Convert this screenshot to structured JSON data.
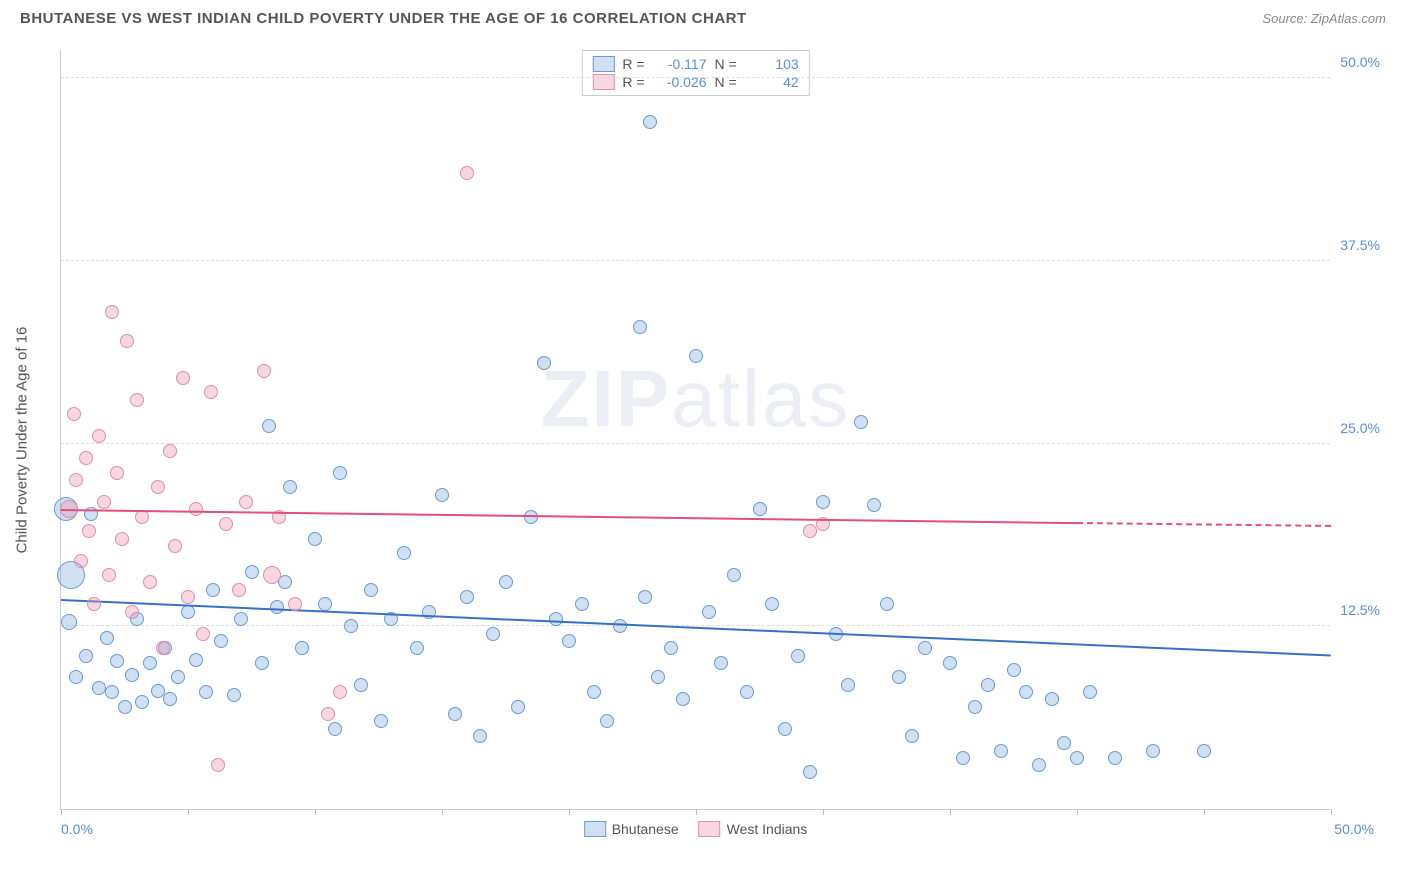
{
  "header": {
    "title": "BHUTANESE VS WEST INDIAN CHILD POVERTY UNDER THE AGE OF 16 CORRELATION CHART",
    "source_prefix": "Source: ",
    "source_name": "ZipAtlas.com"
  },
  "axes": {
    "ylabel": "Child Poverty Under the Age of 16",
    "xlim": [
      0,
      50
    ],
    "ylim": [
      0,
      52
    ],
    "x_tick_positions": [
      0,
      5,
      10,
      15,
      20,
      25,
      30,
      35,
      40,
      45,
      50
    ],
    "x_min_label": "0.0%",
    "x_max_label": "50.0%",
    "y_gridlines": [
      {
        "value": 12.5,
        "label": "12.5%"
      },
      {
        "value": 25.0,
        "label": "25.0%"
      },
      {
        "value": 37.5,
        "label": "37.5%"
      },
      {
        "value": 50.0,
        "label": "50.0%"
      }
    ],
    "grid_color": "#dddddd",
    "axis_color": "#cccccc",
    "tick_label_color": "#5B8FD6"
  },
  "watermark": {
    "zip": "ZIP",
    "atlas": "atlas"
  },
  "series": [
    {
      "name": "Bhutanese",
      "fill": "rgba(120,165,220,0.35)",
      "stroke": "#6C9BD2",
      "line_color": "#3672C4",
      "stats": {
        "R": "-0.117",
        "N": "103"
      },
      "trend": {
        "x1": 0,
        "y1": 14.2,
        "x2": 50,
        "y2": 10.4,
        "dash_start_x": 50
      },
      "points": [
        {
          "x": 0.2,
          "y": 20.5,
          "r": 12
        },
        {
          "x": 0.4,
          "y": 16.0,
          "r": 14
        },
        {
          "x": 0.3,
          "y": 12.8,
          "r": 8
        },
        {
          "x": 0.6,
          "y": 9.0,
          "r": 7
        },
        {
          "x": 1.0,
          "y": 10.5,
          "r": 7
        },
        {
          "x": 1.2,
          "y": 20.2,
          "r": 7
        },
        {
          "x": 1.5,
          "y": 8.3,
          "r": 7
        },
        {
          "x": 1.8,
          "y": 11.7,
          "r": 7
        },
        {
          "x": 2.0,
          "y": 8.0,
          "r": 7
        },
        {
          "x": 2.2,
          "y": 10.1,
          "r": 7
        },
        {
          "x": 2.5,
          "y": 7.0,
          "r": 7
        },
        {
          "x": 2.8,
          "y": 9.2,
          "r": 7
        },
        {
          "x": 3.0,
          "y": 13.0,
          "r": 7
        },
        {
          "x": 3.2,
          "y": 7.3,
          "r": 7
        },
        {
          "x": 3.5,
          "y": 10.0,
          "r": 7
        },
        {
          "x": 3.8,
          "y": 8.1,
          "r": 7
        },
        {
          "x": 4.1,
          "y": 11.0,
          "r": 7
        },
        {
          "x": 4.3,
          "y": 7.5,
          "r": 7
        },
        {
          "x": 4.6,
          "y": 9.0,
          "r": 7
        },
        {
          "x": 5.0,
          "y": 13.5,
          "r": 7
        },
        {
          "x": 5.3,
          "y": 10.2,
          "r": 7
        },
        {
          "x": 5.7,
          "y": 8.0,
          "r": 7
        },
        {
          "x": 6.0,
          "y": 15.0,
          "r": 7
        },
        {
          "x": 6.3,
          "y": 11.5,
          "r": 7
        },
        {
          "x": 6.8,
          "y": 7.8,
          "r": 7
        },
        {
          "x": 7.1,
          "y": 13.0,
          "r": 7
        },
        {
          "x": 7.5,
          "y": 16.2,
          "r": 7
        },
        {
          "x": 7.9,
          "y": 10.0,
          "r": 7
        },
        {
          "x": 8.2,
          "y": 26.2,
          "r": 7
        },
        {
          "x": 8.5,
          "y": 13.8,
          "r": 7
        },
        {
          "x": 8.8,
          "y": 15.5,
          "r": 7
        },
        {
          "x": 9.0,
          "y": 22.0,
          "r": 7
        },
        {
          "x": 9.5,
          "y": 11.0,
          "r": 7
        },
        {
          "x": 10.0,
          "y": 18.5,
          "r": 7
        },
        {
          "x": 10.4,
          "y": 14.0,
          "r": 7
        },
        {
          "x": 10.8,
          "y": 5.5,
          "r": 7
        },
        {
          "x": 11.0,
          "y": 23.0,
          "r": 7
        },
        {
          "x": 11.4,
          "y": 12.5,
          "r": 7
        },
        {
          "x": 11.8,
          "y": 8.5,
          "r": 7
        },
        {
          "x": 12.2,
          "y": 15.0,
          "r": 7
        },
        {
          "x": 12.6,
          "y": 6.0,
          "r": 7
        },
        {
          "x": 13.0,
          "y": 13.0,
          "r": 7
        },
        {
          "x": 13.5,
          "y": 17.5,
          "r": 7
        },
        {
          "x": 14.0,
          "y": 11.0,
          "r": 7
        },
        {
          "x": 14.5,
          "y": 13.5,
          "r": 7
        },
        {
          "x": 15.0,
          "y": 21.5,
          "r": 7
        },
        {
          "x": 15.5,
          "y": 6.5,
          "r": 7
        },
        {
          "x": 16.0,
          "y": 14.5,
          "r": 7
        },
        {
          "x": 16.5,
          "y": 5.0,
          "r": 7
        },
        {
          "x": 17.0,
          "y": 12.0,
          "r": 7
        },
        {
          "x": 17.5,
          "y": 15.5,
          "r": 7
        },
        {
          "x": 18.0,
          "y": 7.0,
          "r": 7
        },
        {
          "x": 18.5,
          "y": 20.0,
          "r": 7
        },
        {
          "x": 19.0,
          "y": 30.5,
          "r": 7
        },
        {
          "x": 19.5,
          "y": 13.0,
          "r": 7
        },
        {
          "x": 20.0,
          "y": 11.5,
          "r": 7
        },
        {
          "x": 20.5,
          "y": 14.0,
          "r": 7
        },
        {
          "x": 21.0,
          "y": 8.0,
          "r": 7
        },
        {
          "x": 21.5,
          "y": 6.0,
          "r": 7
        },
        {
          "x": 22.0,
          "y": 12.5,
          "r": 7
        },
        {
          "x": 22.8,
          "y": 33.0,
          "r": 7
        },
        {
          "x": 23.0,
          "y": 14.5,
          "r": 7
        },
        {
          "x": 23.2,
          "y": 47.0,
          "r": 7
        },
        {
          "x": 23.5,
          "y": 9.0,
          "r": 7
        },
        {
          "x": 24.0,
          "y": 11.0,
          "r": 7
        },
        {
          "x": 24.5,
          "y": 7.5,
          "r": 7
        },
        {
          "x": 25.0,
          "y": 31.0,
          "r": 7
        },
        {
          "x": 25.5,
          "y": 13.5,
          "r": 7
        },
        {
          "x": 26.0,
          "y": 10.0,
          "r": 7
        },
        {
          "x": 26.5,
          "y": 16.0,
          "r": 7
        },
        {
          "x": 27.0,
          "y": 8.0,
          "r": 7
        },
        {
          "x": 27.5,
          "y": 20.5,
          "r": 7
        },
        {
          "x": 28.0,
          "y": 14.0,
          "r": 7
        },
        {
          "x": 28.5,
          "y": 5.5,
          "r": 7
        },
        {
          "x": 29.0,
          "y": 10.5,
          "r": 7
        },
        {
          "x": 29.5,
          "y": 2.5,
          "r": 7
        },
        {
          "x": 30.0,
          "y": 21.0,
          "r": 7
        },
        {
          "x": 30.5,
          "y": 12.0,
          "r": 7
        },
        {
          "x": 31.0,
          "y": 8.5,
          "r": 7
        },
        {
          "x": 31.5,
          "y": 26.5,
          "r": 7
        },
        {
          "x": 32.0,
          "y": 20.8,
          "r": 7
        },
        {
          "x": 32.5,
          "y": 14.0,
          "r": 7
        },
        {
          "x": 33.0,
          "y": 9.0,
          "r": 7
        },
        {
          "x": 33.5,
          "y": 5.0,
          "r": 7
        },
        {
          "x": 34.0,
          "y": 11.0,
          "r": 7
        },
        {
          "x": 35.0,
          "y": 10.0,
          "r": 7
        },
        {
          "x": 35.5,
          "y": 3.5,
          "r": 7
        },
        {
          "x": 36.0,
          "y": 7.0,
          "r": 7
        },
        {
          "x": 36.5,
          "y": 8.5,
          "r": 7
        },
        {
          "x": 37.0,
          "y": 4.0,
          "r": 7
        },
        {
          "x": 37.5,
          "y": 9.5,
          "r": 7
        },
        {
          "x": 38.0,
          "y": 8.0,
          "r": 7
        },
        {
          "x": 38.5,
          "y": 3.0,
          "r": 7
        },
        {
          "x": 39.0,
          "y": 7.5,
          "r": 7
        },
        {
          "x": 39.5,
          "y": 4.5,
          "r": 7
        },
        {
          "x": 40.0,
          "y": 3.5,
          "r": 7
        },
        {
          "x": 40.5,
          "y": 8.0,
          "r": 7
        },
        {
          "x": 41.5,
          "y": 3.5,
          "r": 7
        },
        {
          "x": 43.0,
          "y": 4.0,
          "r": 7
        },
        {
          "x": 45.0,
          "y": 4.0,
          "r": 7
        }
      ]
    },
    {
      "name": "West Indians",
      "fill": "rgba(235,140,170,0.35)",
      "stroke": "#E090AC",
      "line_color": "#E04F7E",
      "stats": {
        "R": "-0.026",
        "N": "42"
      },
      "trend": {
        "x1": 0,
        "y1": 20.4,
        "x2": 40,
        "y2": 19.5,
        "dash_start_x": 40,
        "dash_end_x": 50,
        "dash_end_y": 19.3
      },
      "points": [
        {
          "x": 0.3,
          "y": 20.5,
          "r": 9
        },
        {
          "x": 0.5,
          "y": 27.0,
          "r": 7
        },
        {
          "x": 0.6,
          "y": 22.5,
          "r": 7
        },
        {
          "x": 0.8,
          "y": 17.0,
          "r": 7
        },
        {
          "x": 1.0,
          "y": 24.0,
          "r": 7
        },
        {
          "x": 1.1,
          "y": 19.0,
          "r": 7
        },
        {
          "x": 1.3,
          "y": 14.0,
          "r": 7
        },
        {
          "x": 1.5,
          "y": 25.5,
          "r": 7
        },
        {
          "x": 1.7,
          "y": 21.0,
          "r": 7
        },
        {
          "x": 1.9,
          "y": 16.0,
          "r": 7
        },
        {
          "x": 2.0,
          "y": 34.0,
          "r": 7
        },
        {
          "x": 2.2,
          "y": 23.0,
          "r": 7
        },
        {
          "x": 2.4,
          "y": 18.5,
          "r": 7
        },
        {
          "x": 2.6,
          "y": 32.0,
          "r": 7
        },
        {
          "x": 2.8,
          "y": 13.5,
          "r": 7
        },
        {
          "x": 3.0,
          "y": 28.0,
          "r": 7
        },
        {
          "x": 3.2,
          "y": 20.0,
          "r": 7
        },
        {
          "x": 3.5,
          "y": 15.5,
          "r": 7
        },
        {
          "x": 3.8,
          "y": 22.0,
          "r": 7
        },
        {
          "x": 4.0,
          "y": 11.0,
          "r": 7
        },
        {
          "x": 4.3,
          "y": 24.5,
          "r": 7
        },
        {
          "x": 4.5,
          "y": 18.0,
          "r": 7
        },
        {
          "x": 4.8,
          "y": 29.5,
          "r": 7
        },
        {
          "x": 5.0,
          "y": 14.5,
          "r": 7
        },
        {
          "x": 5.3,
          "y": 20.5,
          "r": 7
        },
        {
          "x": 5.6,
          "y": 12.0,
          "r": 7
        },
        {
          "x": 5.9,
          "y": 28.5,
          "r": 7
        },
        {
          "x": 6.2,
          "y": 3.0,
          "r": 7
        },
        {
          "x": 6.5,
          "y": 19.5,
          "r": 7
        },
        {
          "x": 7.0,
          "y": 15.0,
          "r": 7
        },
        {
          "x": 7.3,
          "y": 21.0,
          "r": 7
        },
        {
          "x": 8.0,
          "y": 30.0,
          "r": 7
        },
        {
          "x": 8.3,
          "y": 16.0,
          "r": 9
        },
        {
          "x": 8.6,
          "y": 20.0,
          "r": 7
        },
        {
          "x": 9.2,
          "y": 14.0,
          "r": 7
        },
        {
          "x": 10.5,
          "y": 6.5,
          "r": 7
        },
        {
          "x": 11.0,
          "y": 8.0,
          "r": 7
        },
        {
          "x": 16.0,
          "y": 43.5,
          "r": 7
        },
        {
          "x": 29.5,
          "y": 19.0,
          "r": 7
        },
        {
          "x": 30.0,
          "y": 19.5,
          "r": 7
        }
      ]
    }
  ],
  "stats_labels": {
    "R": "R =",
    "N": "N ="
  },
  "legend": {
    "label_a": "Bhutanese",
    "label_b": "West Indians"
  },
  "style": {
    "background": "#ffffff",
    "marker_default_radius": 7,
    "marker_stroke_width": 1.2,
    "trend_width": 2
  }
}
